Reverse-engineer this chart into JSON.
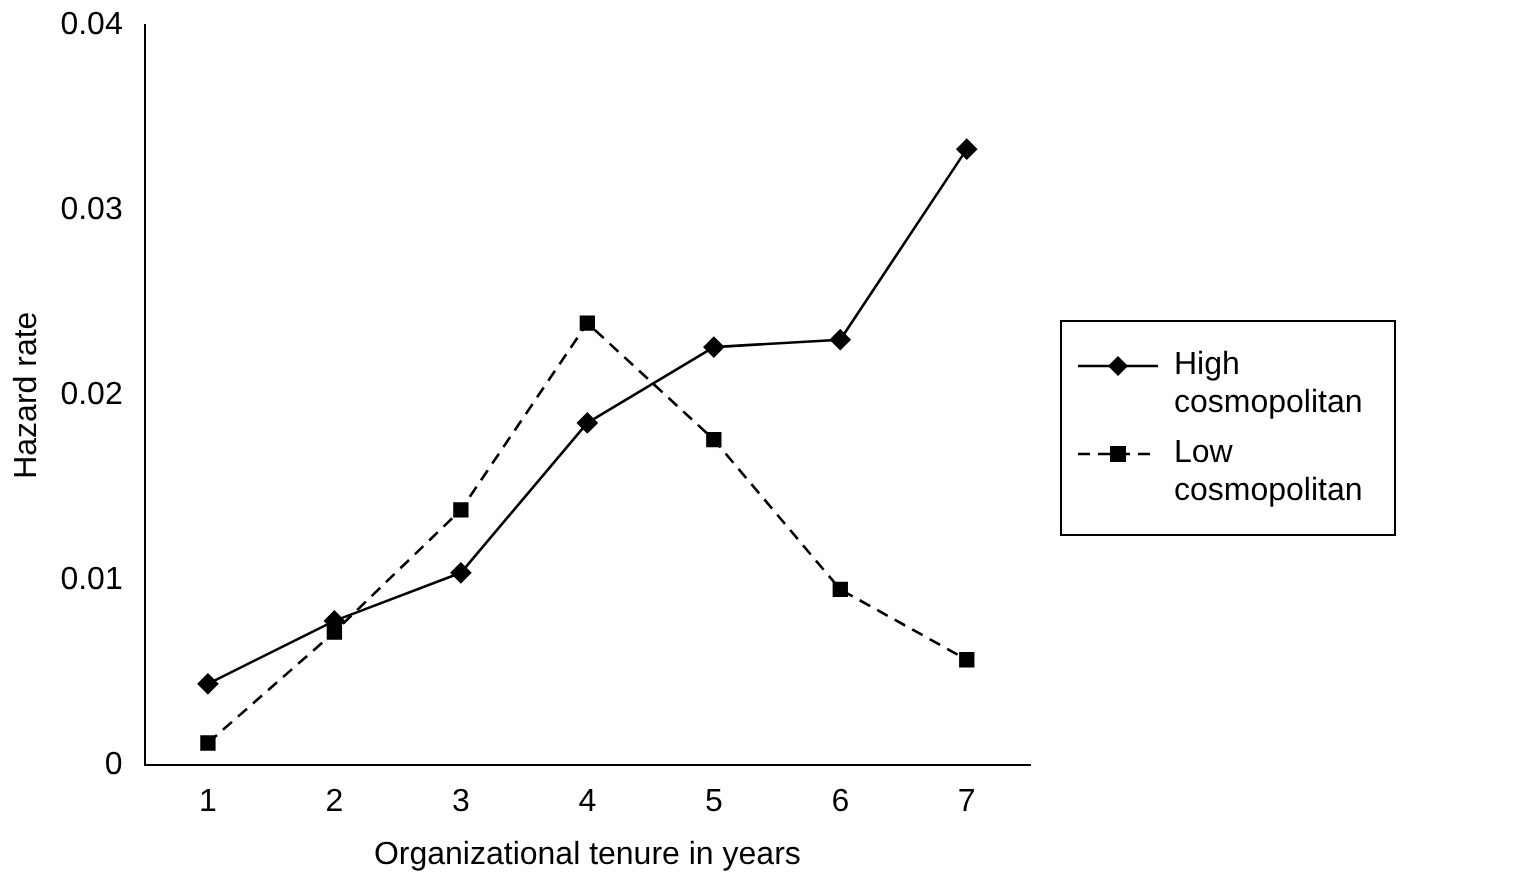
{
  "chart_data": {
    "type": "line",
    "xlabel": "Organizational tenure in years",
    "ylabel": "Hazard rate",
    "categories": [
      "1",
      "2",
      "3",
      "4",
      "5",
      "6",
      "7"
    ],
    "series": [
      {
        "name": "High cosmopolitan",
        "color": "#000000",
        "marker": "diamond",
        "line_style": "solid",
        "values": [
          0.0044,
          0.0078,
          0.0104,
          0.0185,
          0.0226,
          0.023,
          0.0333
        ]
      },
      {
        "name": "Low cosmopolitan",
        "color": "#000000",
        "marker": "square",
        "line_style": "dashed",
        "values": [
          0.0012,
          0.0072,
          0.0138,
          0.0239,
          0.0176,
          0.0095,
          0.0057
        ]
      }
    ],
    "ylim": [
      0,
      0.04
    ],
    "yticks": [
      0,
      0.01,
      0.02,
      0.03,
      0.04
    ],
    "grid": false,
    "legend": "right"
  }
}
